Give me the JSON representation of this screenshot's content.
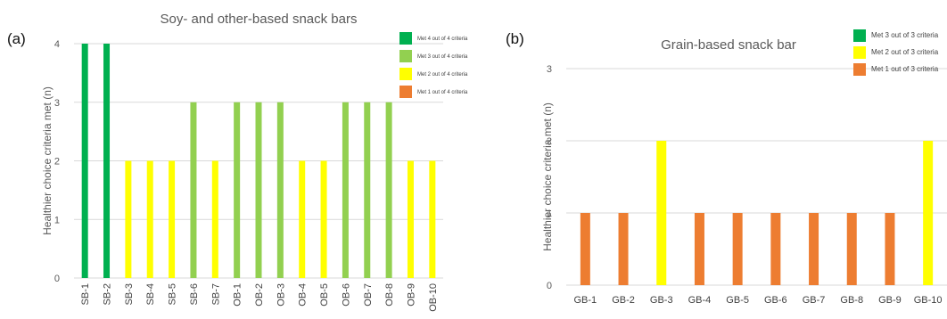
{
  "panels": [
    {
      "panel_label": "(a)",
      "title": "Soy- and other-based snack bars",
      "ylabel": "Healthier choice criteria met (n)"
    },
    {
      "panel_label": "(b)",
      "title": "Grain-based snack bar",
      "ylabel": "Healthier choice criteria met (n)"
    }
  ],
  "chart_data": [
    {
      "type": "bar",
      "title": "Soy- and other-based snack bars",
      "xlabel": "",
      "ylabel": "Healthier choice criteria met (n)",
      "ylim": [
        0,
        4
      ],
      "yticks": [
        0,
        1,
        2,
        3,
        4
      ],
      "grid": true,
      "legend_position": "top-right",
      "categories": [
        "SB-1",
        "SB-2",
        "SB-3",
        "SB-4",
        "SB-5",
        "SB-6",
        "SB-7",
        "OB-1",
        "OB-2",
        "OB-3",
        "OB-4",
        "OB-5",
        "OB-6",
        "OB-7",
        "OB-8",
        "OB-9",
        "OB-10"
      ],
      "values": [
        4,
        4,
        2,
        2,
        2,
        3,
        2,
        3,
        3,
        3,
        2,
        2,
        3,
        3,
        3,
        2,
        2
      ],
      "legend": [
        {
          "label": "Met 4 out of 4 criteria",
          "value": 4,
          "color": "#00b050"
        },
        {
          "label": "Met 3 out of 4 criteria",
          "value": 3,
          "color": "#92d050"
        },
        {
          "label": "Met 2 out of 4 criteria",
          "value": 2,
          "color": "#ffff00"
        },
        {
          "label": "Met 1 out of 4 criteria",
          "value": 1,
          "color": "#ed7d31"
        }
      ]
    },
    {
      "type": "bar",
      "title": "Grain-based snack bar",
      "xlabel": "",
      "ylabel": "Healthier choice criteria met (n)",
      "ylim": [
        0,
        3
      ],
      "yticks": [
        0,
        1,
        2,
        3
      ],
      "grid": true,
      "legend_position": "top-right",
      "categories": [
        "GB-1",
        "GB-2",
        "GB-3",
        "GB-4",
        "GB-5",
        "GB-6",
        "GB-7",
        "GB-8",
        "GB-9",
        "GB-10"
      ],
      "values": [
        1,
        1,
        2,
        1,
        1,
        1,
        1,
        1,
        1,
        2
      ],
      "legend": [
        {
          "label": "Met 3 out of 3 criteria",
          "value": 3,
          "color": "#00b050"
        },
        {
          "label": "Met 2 out of 3 criteria",
          "value": 2,
          "color": "#ffff00"
        },
        {
          "label": "Met 1 out of 3 criteria",
          "value": 1,
          "color": "#ed7d31"
        }
      ]
    }
  ]
}
